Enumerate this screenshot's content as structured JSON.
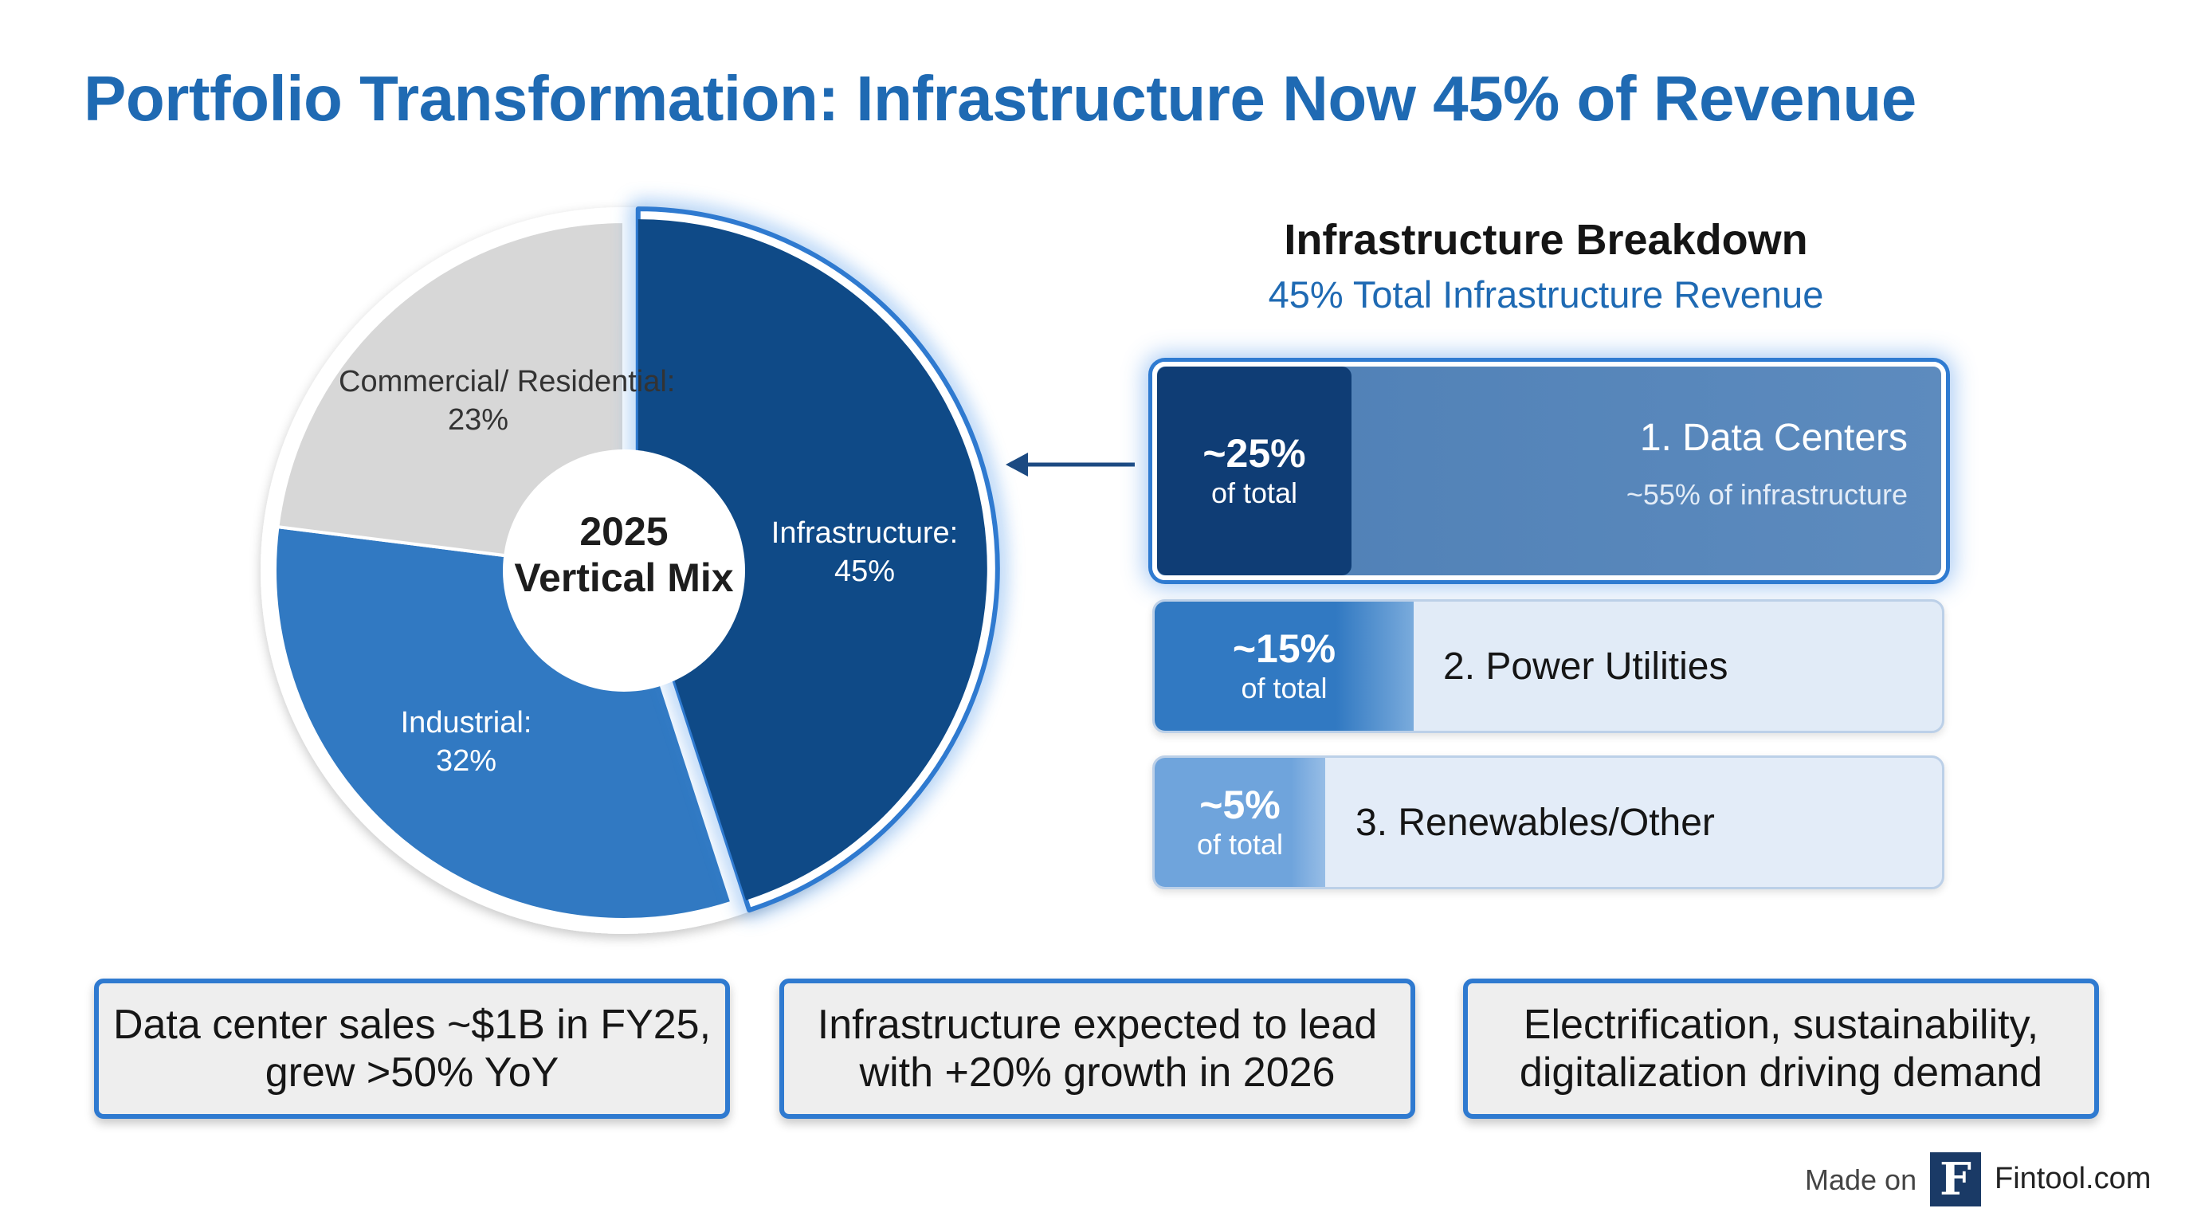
{
  "title": "Portfolio Transformation: Infrastructure Now 45% of Revenue",
  "chart_data": {
    "type": "pie",
    "title": "2025 Vertical Mix",
    "center_label": "2025 Vertical Mix",
    "slices": [
      {
        "name": "Infrastructure:",
        "label_value": "45%",
        "value": 45,
        "color": "#0f4a87",
        "highlighted": true
      },
      {
        "name": "Industrial:",
        "label_value": "32%",
        "value": 32,
        "color": "#3179c2"
      },
      {
        "name": "Commercial/ Residential:",
        "label_value": "23%",
        "value": 23,
        "color": "#d7d7d7"
      }
    ]
  },
  "breakdown": {
    "title": "Infrastructure Breakdown",
    "subtitle": "45% Total Infrastructure Revenue",
    "items": [
      {
        "pct": "~25%",
        "of_total": "of total",
        "name": "1. Data Centers",
        "sub": "~55% of infrastructure"
      },
      {
        "pct": "~15%",
        "of_total": "of total",
        "name": "2. Power Utilities"
      },
      {
        "pct": "~5%",
        "of_total": "of total",
        "name": "3. Renewables/Other"
      }
    ]
  },
  "callouts": [
    "Data center sales ~$1B in FY25, grew >50% YoY",
    "Infrastructure expected to lead with +20% growth in 2026",
    "Electrification, sustainability, digitalization driving demand"
  ],
  "footer": {
    "made_on": "Made on",
    "logo_letter": "F",
    "site": "Fintool.com"
  },
  "colors": {
    "accent": "#1f6ab3",
    "infrastructure": "#0f4a87",
    "industrial": "#3179c2",
    "commercial": "#d7d7d7"
  }
}
